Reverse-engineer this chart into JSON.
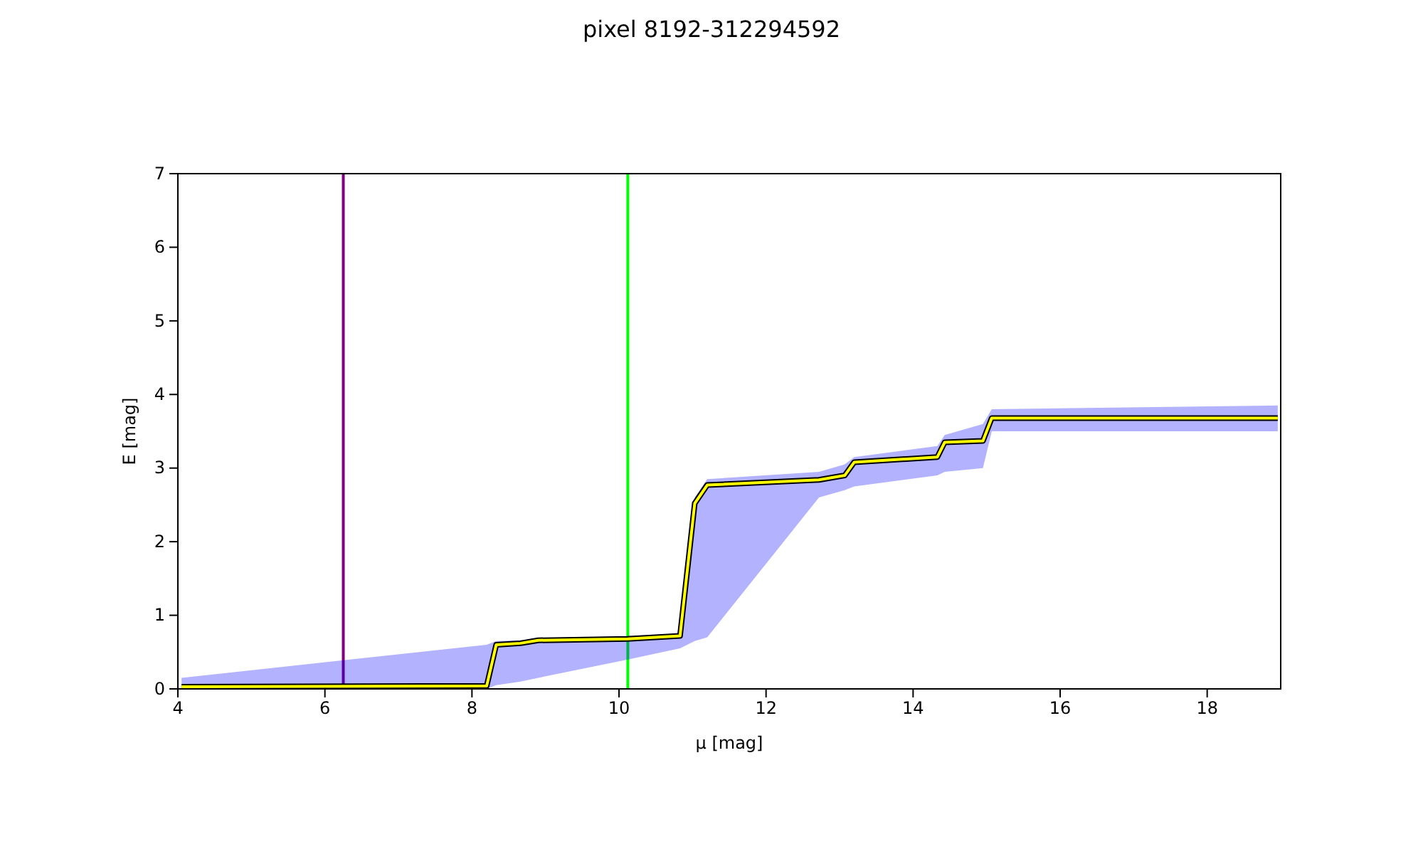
{
  "chart_data": {
    "type": "line",
    "title": "pixel 8192-312294592",
    "xlabel": "μ [mag]",
    "ylabel": "E [mag]",
    "xlim": [
      4,
      19
    ],
    "ylim": [
      0,
      7
    ],
    "xticks": [
      4,
      6,
      8,
      10,
      12,
      14,
      16,
      18
    ],
    "yticks": [
      0,
      1,
      2,
      3,
      4,
      5,
      6,
      7
    ],
    "marker": "none",
    "line_style": "solid",
    "series": [
      {
        "color": "#ffff00",
        "x": [
          4.05,
          8.2,
          8.33,
          8.66,
          8.9,
          10.12,
          10.83,
          11.03,
          11.2,
          12.72,
          13.07,
          13.2,
          14.33,
          14.43,
          14.95,
          15.07,
          18.96
        ],
        "values": [
          0.03,
          0.04,
          0.6,
          0.62,
          0.66,
          0.68,
          0.72,
          2.52,
          2.77,
          2.84,
          2.9,
          3.08,
          3.15,
          3.35,
          3.37,
          3.68,
          3.68
        ],
        "lower": [
          0,
          0,
          0.05,
          0.1,
          0.15,
          0.4,
          0.55,
          0.65,
          0.7,
          2.6,
          2.7,
          2.75,
          2.9,
          2.95,
          3.0,
          3.5,
          3.5
        ],
        "upper": [
          0.15,
          0.6,
          0.65,
          0.66,
          0.68,
          0.72,
          0.75,
          2.6,
          2.85,
          2.95,
          3.05,
          3.15,
          3.3,
          3.45,
          3.6,
          3.8,
          3.85
        ]
      }
    ],
    "ref_lines": [
      {
        "axis": "x",
        "value": 6.25,
        "color": "#800080"
      },
      {
        "axis": "x",
        "value": 10.12,
        "color": "#00ff00"
      }
    ]
  }
}
